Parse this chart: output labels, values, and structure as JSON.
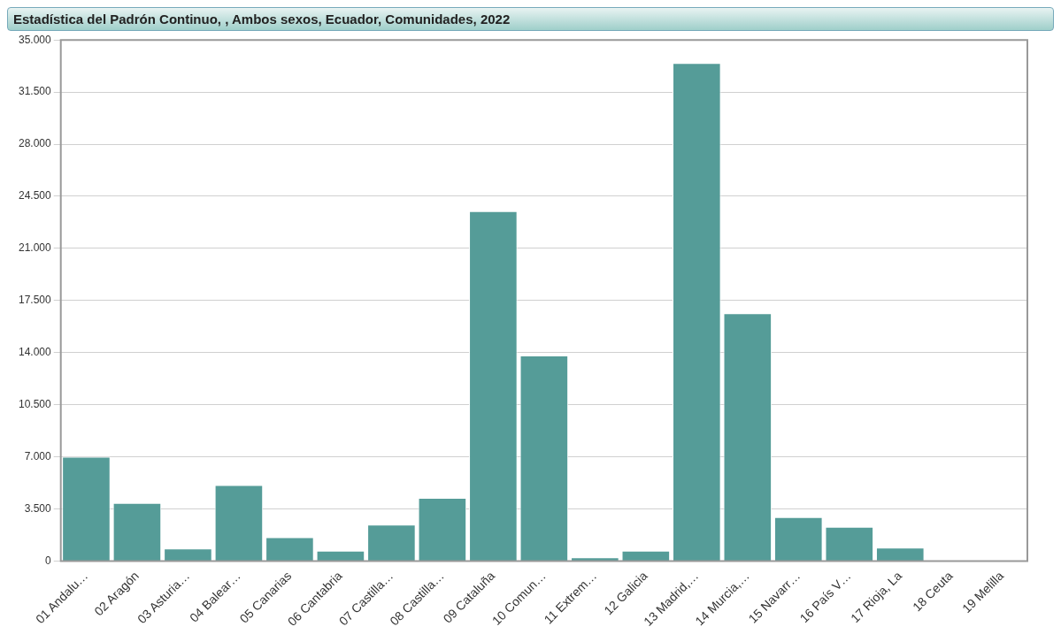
{
  "chart_data": {
    "type": "bar",
    "title": "Estadística del Padrón Continuo, , Ambos sexos, Ecuador, Comunidades, 2022",
    "categories": [
      "01 Andalu…",
      "02 Aragón",
      "03 Asturia…",
      "04 Balear…",
      "05 Canarias",
      "06 Cantabria",
      "07 Castilla…",
      "08 Castilla…",
      "09 Cataluña",
      "10 Comun…",
      "11 Extrem…",
      "12 Galicia",
      "13 Madrid,…",
      "14 Murcia,…",
      "15 Navarr…",
      "16 País V…",
      "17 Rioja, La",
      "18 Ceuta",
      "19 Melilla"
    ],
    "values": [
      7000,
      3900,
      850,
      5100,
      1600,
      700,
      2450,
      4250,
      23500,
      13800,
      250,
      700,
      33450,
      16650,
      2950,
      2300,
      900,
      30,
      20
    ],
    "color": "#559c98",
    "ylim": [
      0,
      35000
    ],
    "yticks": [
      {
        "value": 0,
        "label": "0"
      },
      {
        "value": 3500,
        "label": "3.500"
      },
      {
        "value": 7000,
        "label": "7.000"
      },
      {
        "value": 10500,
        "label": "10.500"
      },
      {
        "value": 14000,
        "label": "14.000"
      },
      {
        "value": 17500,
        "label": "17.500"
      },
      {
        "value": 21000,
        "label": "21.000"
      },
      {
        "value": 24500,
        "label": "24.500"
      },
      {
        "value": 28000,
        "label": "28.000"
      },
      {
        "value": 31500,
        "label": "31.500"
      },
      {
        "value": 35000,
        "label": "35.000"
      }
    ],
    "grid": "y"
  }
}
